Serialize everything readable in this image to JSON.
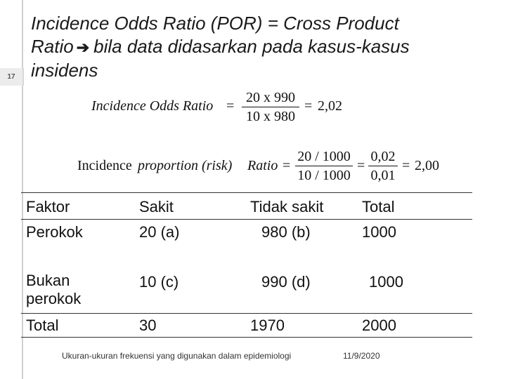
{
  "slide_number": "17",
  "title": {
    "line1": "Incidence Odds Ratio (POR) = Cross Product",
    "line2_prefix": "Ratio",
    "line2_arrow": "➔",
    "line2_rest": "bila data didasarkan pada kasus-kasus",
    "line3": "insidens"
  },
  "formula1": {
    "label": "Incidence Odds Ratio",
    "eq": "=",
    "numerator": "20 x 990",
    "denominator": "10 x 980",
    "eq2": "=",
    "result": "2,02"
  },
  "formula2": {
    "label_a": "Incidence",
    "label_b": "proportion (risk)",
    "label_c": "Ratio",
    "eq": "=",
    "numerator": "20 / 1000",
    "denominator": "10 / 1000",
    "eq2": "=",
    "numerator2": "0,02",
    "denominator2": "0,01",
    "eq3": "=",
    "result": "2,00"
  },
  "table": {
    "headers": [
      "Faktor",
      "Sakit",
      "Tidak sakit",
      "Total"
    ],
    "rows": [
      [
        "Perokok",
        "20 (a)",
        "980 (b)",
        "1000"
      ],
      [
        "Bukan perokok",
        "10 (c)",
        "990 (d)",
        "1000"
      ],
      [
        "Total",
        "30",
        "1970",
        "2000"
      ]
    ]
  },
  "footer": {
    "caption": "Ukuran-ukuran frekuensi yang digunakan dalam epidemiologi",
    "date": "11/9/2020"
  }
}
